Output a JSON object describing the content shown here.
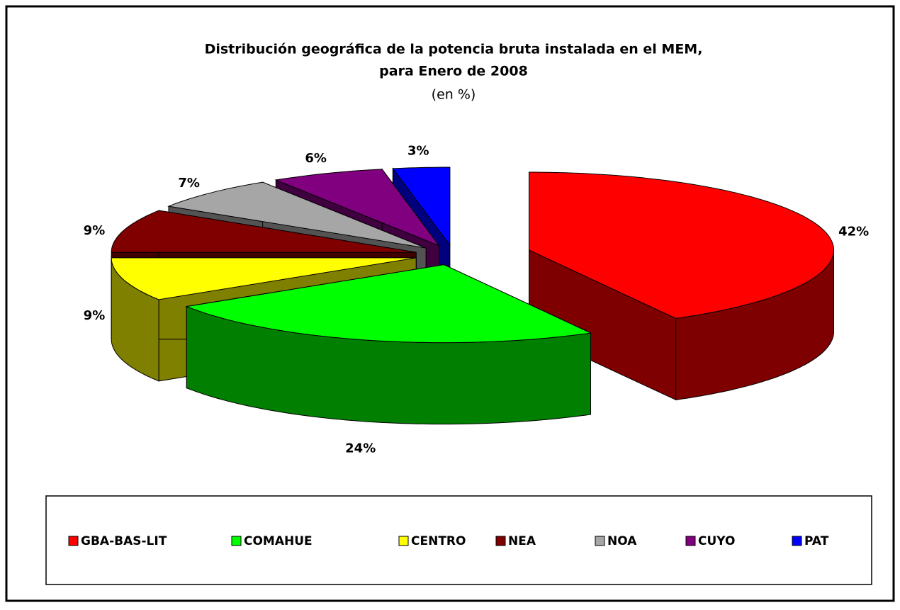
{
  "chart_data": {
    "type": "pie3d",
    "title": [
      "Distribución geográfica de la potencia bruta instalada en el MEM,",
      "para Enero de 2008"
    ],
    "subtitle": "(en %)",
    "categories": [
      "GBA-BAS-LIT",
      "COMAHUE",
      "CENTRO",
      "NEA",
      "NOA",
      "CUYO",
      "PAT"
    ],
    "values": [
      42,
      24,
      9,
      9,
      7,
      6,
      3
    ],
    "value_labels": [
      "42%",
      "24%",
      "9%",
      "9%",
      "7%",
      "6%",
      "3%"
    ],
    "colors": [
      "#ff0000",
      "#00ff00",
      "#ffff00",
      "#800000",
      "#a6a6a6",
      "#800080",
      "#0000ff"
    ],
    "legend": "bottom"
  }
}
